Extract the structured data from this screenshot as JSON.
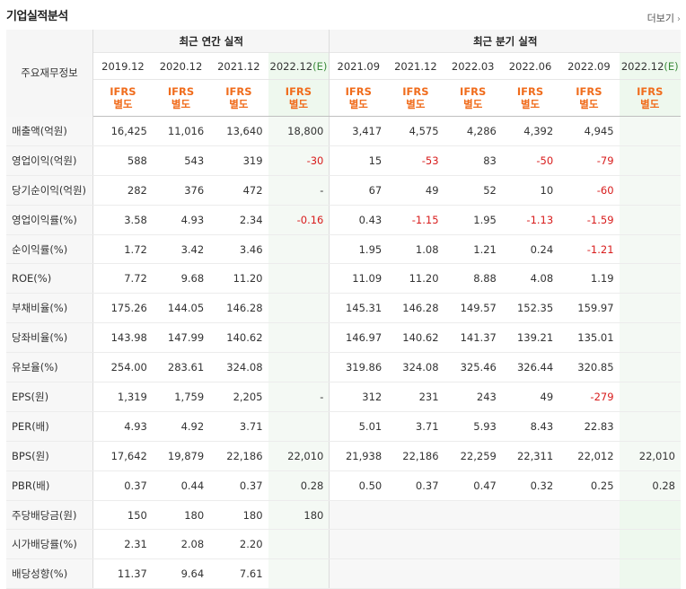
{
  "header": {
    "title": "기업실적분석",
    "more_label": "더보기",
    "more_icon": "chevron-right-icon"
  },
  "table": {
    "row_header": "주요재무정보",
    "annual_group": "최근 연간 실적",
    "quarter_group": "최근 분기 실적",
    "annual_periods": [
      "2019.12",
      "2020.12",
      "2021.12",
      "2022.12"
    ],
    "quarter_periods": [
      "2021.09",
      "2021.12",
      "2022.03",
      "2022.06",
      "2022.09",
      "2022.12"
    ],
    "estimate_suffix": "(E)",
    "ifrs_line1": "IFRS",
    "ifrs_line2": "별도",
    "rows": [
      {
        "label": "매출액(억원)",
        "values": [
          "16,425",
          "11,016",
          "13,640",
          "18,800",
          "3,417",
          "4,575",
          "4,286",
          "4,392",
          "4,945",
          ""
        ]
      },
      {
        "label": "영업이익(억원)",
        "values": [
          "588",
          "543",
          "319",
          "-30",
          "15",
          "-53",
          "83",
          "-50",
          "-79",
          ""
        ]
      },
      {
        "label": "당기순이익(억원)",
        "values": [
          "282",
          "376",
          "472",
          "-",
          "67",
          "49",
          "52",
          "10",
          "-60",
          ""
        ]
      },
      {
        "label": "영업이익률(%)",
        "values": [
          "3.58",
          "4.93",
          "2.34",
          "-0.16",
          "0.43",
          "-1.15",
          "1.95",
          "-1.13",
          "-1.59",
          ""
        ]
      },
      {
        "label": "순이익률(%)",
        "values": [
          "1.72",
          "3.42",
          "3.46",
          "",
          "1.95",
          "1.08",
          "1.21",
          "0.24",
          "-1.21",
          ""
        ]
      },
      {
        "label": "ROE(%)",
        "values": [
          "7.72",
          "9.68",
          "11.20",
          "",
          "11.09",
          "11.20",
          "8.88",
          "4.08",
          "1.19",
          ""
        ]
      },
      {
        "label": "부채비율(%)",
        "values": [
          "175.26",
          "144.05",
          "146.28",
          "",
          "145.31",
          "146.28",
          "149.57",
          "152.35",
          "159.97",
          ""
        ]
      },
      {
        "label": "당좌비율(%)",
        "values": [
          "143.98",
          "147.99",
          "140.62",
          "",
          "146.97",
          "140.62",
          "141.37",
          "139.21",
          "135.01",
          ""
        ]
      },
      {
        "label": "유보율(%)",
        "values": [
          "254.00",
          "283.61",
          "324.08",
          "",
          "319.86",
          "324.08",
          "325.46",
          "326.44",
          "320.85",
          ""
        ]
      },
      {
        "label": "EPS(원)",
        "values": [
          "1,319",
          "1,759",
          "2,205",
          "-",
          "312",
          "231",
          "243",
          "49",
          "-279",
          ""
        ]
      },
      {
        "label": "PER(배)",
        "values": [
          "4.93",
          "4.92",
          "3.71",
          "",
          "5.01",
          "3.71",
          "5.93",
          "8.43",
          "22.83",
          ""
        ]
      },
      {
        "label": "BPS(원)",
        "values": [
          "17,642",
          "19,879",
          "22,186",
          "22,010",
          "21,938",
          "22,186",
          "22,259",
          "22,311",
          "22,012",
          "22,010"
        ]
      },
      {
        "label": "PBR(배)",
        "values": [
          "0.37",
          "0.44",
          "0.37",
          "0.28",
          "0.50",
          "0.37",
          "0.47",
          "0.32",
          "0.25",
          "0.28"
        ]
      },
      {
        "label": "주당배당금(원)",
        "values": [
          "150",
          "180",
          "180",
          "180",
          "",
          "",
          "",
          "",
          "",
          ""
        ]
      },
      {
        "label": "시가배당률(%)",
        "values": [
          "2.31",
          "2.08",
          "2.20",
          "",
          "",
          "",
          "",
          "",
          "",
          ""
        ]
      },
      {
        "label": "배당성향(%)",
        "values": [
          "11.37",
          "9.64",
          "7.61",
          "",
          "",
          "",
          "",
          "",
          "",
          ""
        ]
      }
    ]
  },
  "colors": {
    "negative": "#d81c1c",
    "ifrs": "#f06c1c",
    "estimate_bg": "#eef8ee",
    "estimate_text": "#3a8a3a"
  }
}
